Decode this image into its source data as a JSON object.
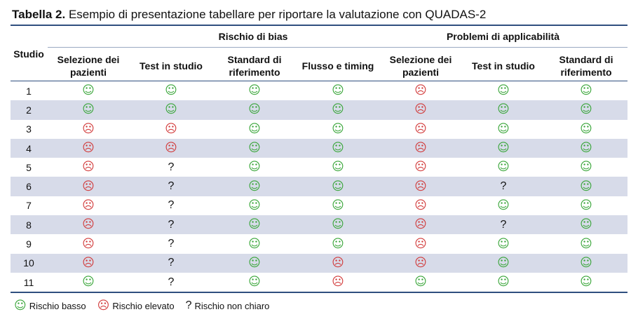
{
  "caption": {
    "label": "Tabella 2.",
    "text": "Esempio di presentazione tabellare per riportare la valutazione con QUADAS-2"
  },
  "groups": {
    "bias": "Rischio di bias",
    "applicability": "Problemi di applicabilità"
  },
  "columns": {
    "studio": "Studio",
    "bias": [
      "Selezione dei pazienti",
      "Test in studio",
      "Standard di riferimento",
      "Flusso e timing"
    ],
    "applicability": [
      "Selezione dei pazienti",
      "Test in studio",
      "Standard di riferimento"
    ]
  },
  "symbols": {
    "low": "☺",
    "high": "☹",
    "unclear": "?"
  },
  "rows": [
    {
      "studio": "1",
      "values": [
        "low",
        "low",
        "low",
        "low",
        "high",
        "low",
        "low"
      ]
    },
    {
      "studio": "2",
      "values": [
        "low",
        "low",
        "low",
        "low",
        "high",
        "low",
        "low"
      ]
    },
    {
      "studio": "3",
      "values": [
        "high",
        "high",
        "low",
        "low",
        "high",
        "low",
        "low"
      ]
    },
    {
      "studio": "4",
      "values": [
        "high",
        "high",
        "low",
        "low",
        "high",
        "low",
        "low"
      ]
    },
    {
      "studio": "5",
      "values": [
        "high",
        "unclear",
        "low",
        "low",
        "high",
        "low",
        "low"
      ]
    },
    {
      "studio": "6",
      "values": [
        "high",
        "unclear",
        "low",
        "low",
        "high",
        "unclear",
        "low"
      ]
    },
    {
      "studio": "7",
      "values": [
        "high",
        "unclear",
        "low",
        "low",
        "high",
        "low",
        "low"
      ]
    },
    {
      "studio": "8",
      "values": [
        "high",
        "unclear",
        "low",
        "low",
        "high",
        "unclear",
        "low"
      ]
    },
    {
      "studio": "9",
      "values": [
        "high",
        "unclear",
        "low",
        "low",
        "high",
        "low",
        "low"
      ]
    },
    {
      "studio": "10",
      "values": [
        "high",
        "unclear",
        "low",
        "high",
        "high",
        "low",
        "low"
      ]
    },
    {
      "studio": "11",
      "values": [
        "low",
        "unclear",
        "low",
        "high",
        "low",
        "low",
        "low"
      ]
    }
  ],
  "legend": {
    "low": "Rischio basso",
    "high": "Rischio elevato",
    "unclear": "Rischio non chiaro"
  }
}
